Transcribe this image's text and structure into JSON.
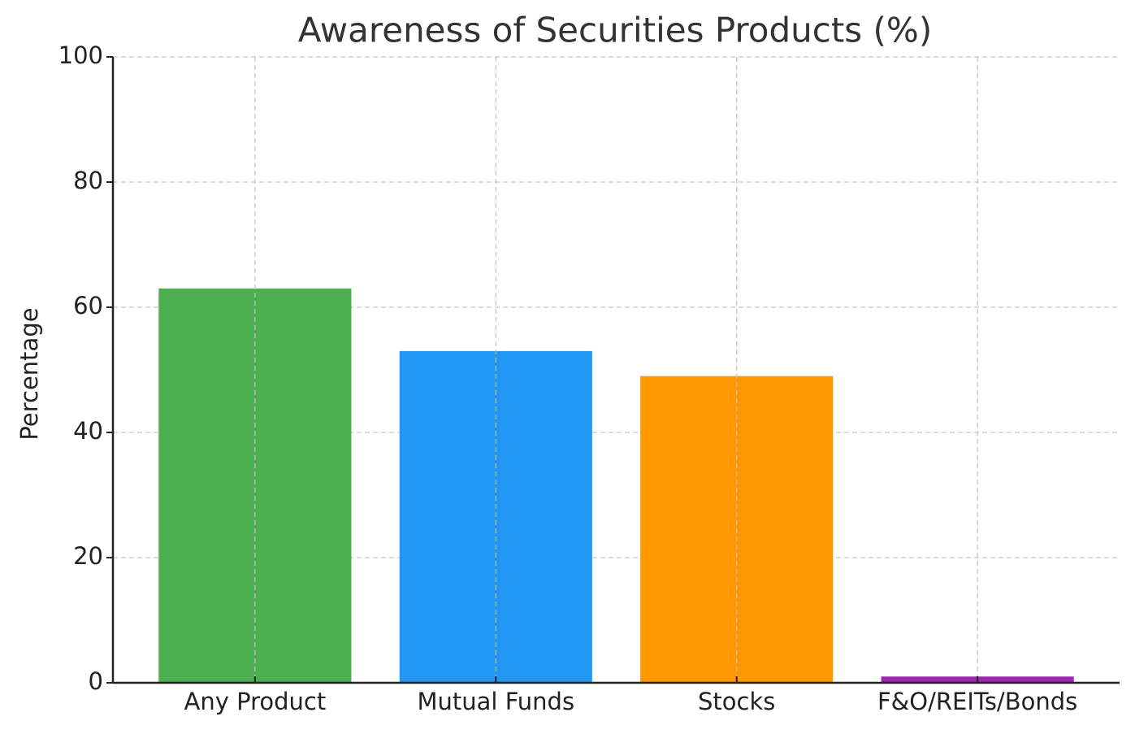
{
  "chart_data": {
    "type": "bar",
    "title": "Awareness of Securities Products (%)",
    "y_label": "Percentage",
    "categories": [
      "Any Product",
      "Mutual Funds",
      "Stocks",
      "F&O/REITs/Bonds"
    ],
    "values": [
      63,
      53,
      49,
      1
    ],
    "colors": [
      "#4caf50",
      "#2196f3",
      "#ff9800",
      "#9c27b0"
    ],
    "ylim": [
      0,
      100
    ],
    "yticks": [
      0,
      20,
      40,
      60,
      80,
      100
    ],
    "grid": true
  }
}
